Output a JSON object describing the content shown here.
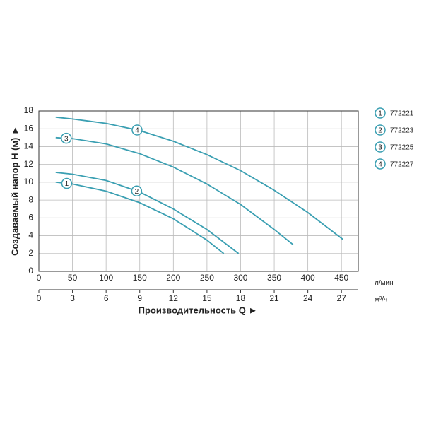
{
  "chart_data": {
    "type": "line",
    "y_label": "Создаваемый напор H (м) ►",
    "x_label": "Производительность Q ►",
    "x_unit": "л/мин",
    "x2_unit": "м³/ч",
    "xlim": [
      0,
      475
    ],
    "xticks": [
      0,
      50,
      100,
      150,
      200,
      250,
      300,
      350,
      400,
      450
    ],
    "x2lim": [
      0,
      28.5
    ],
    "x2ticks": [
      0,
      3,
      6,
      9,
      12,
      15,
      18,
      21,
      24,
      27
    ],
    "ylim": [
      0,
      18
    ],
    "yticks": [
      0,
      2,
      4,
      6,
      8,
      10,
      12,
      14,
      16,
      18
    ],
    "grid": true,
    "color": "#3a9fb2",
    "series": [
      {
        "label": "1",
        "name": "772221",
        "x": [
          25,
          50,
          100,
          150,
          200,
          250,
          275
        ],
        "values": [
          10.0,
          9.8,
          9.0,
          7.7,
          5.9,
          3.5,
          2.0
        ]
      },
      {
        "label": "2",
        "name": "772223",
        "x": [
          25,
          50,
          100,
          150,
          200,
          250,
          297
        ],
        "values": [
          11.1,
          10.9,
          10.2,
          8.9,
          7.0,
          4.7,
          2.0
        ]
      },
      {
        "label": "3",
        "name": "772225",
        "x": [
          25,
          50,
          100,
          150,
          200,
          250,
          300,
          350,
          378
        ],
        "values": [
          15.0,
          14.9,
          14.3,
          13.2,
          11.7,
          9.8,
          7.5,
          4.7,
          3.0
        ]
      },
      {
        "label": "4",
        "name": "772227",
        "x": [
          25,
          50,
          100,
          150,
          200,
          250,
          300,
          350,
          400,
          452
        ],
        "values": [
          17.3,
          17.1,
          16.6,
          15.8,
          14.6,
          13.1,
          11.3,
          9.1,
          6.6,
          3.6
        ]
      }
    ]
  }
}
